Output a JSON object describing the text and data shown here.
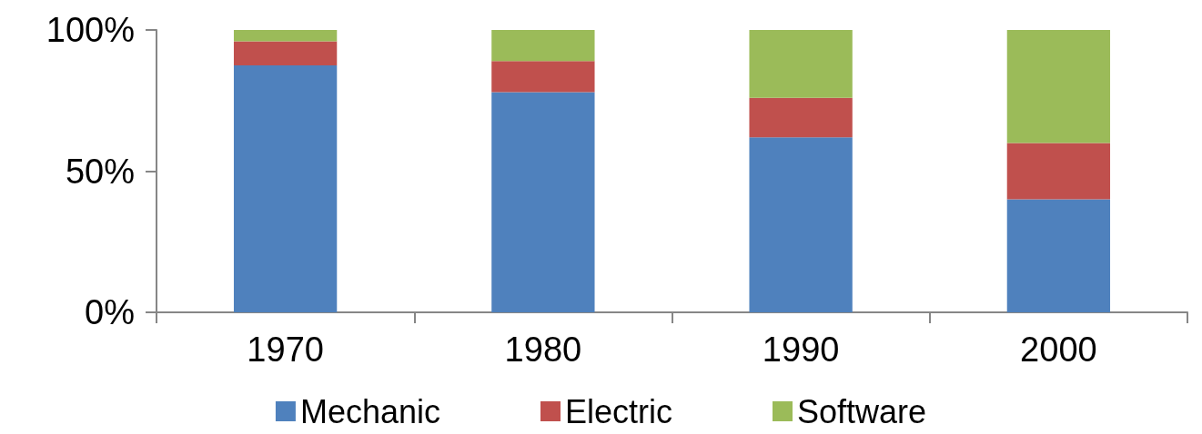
{
  "chart_data": {
    "type": "bar",
    "stacked": true,
    "categories": [
      "1970",
      "1980",
      "1990",
      "2000"
    ],
    "series": [
      {
        "name": "Mechanic",
        "color": "#4f81bd",
        "values": [
          87.5,
          78,
          62,
          40
        ]
      },
      {
        "name": "Electric",
        "color": "#c0504d",
        "values": [
          8.5,
          11,
          14,
          20
        ]
      },
      {
        "name": "Software",
        "color": "#9bbb59",
        "values": [
          4,
          11,
          24,
          40
        ]
      }
    ],
    "ylim": [
      0,
      100
    ],
    "yticks": [
      {
        "value": 0,
        "label": "0%"
      },
      {
        "value": 50,
        "label": "50%"
      },
      {
        "value": 100,
        "label": "100%"
      }
    ],
    "grid": false,
    "legend": "bottom"
  }
}
